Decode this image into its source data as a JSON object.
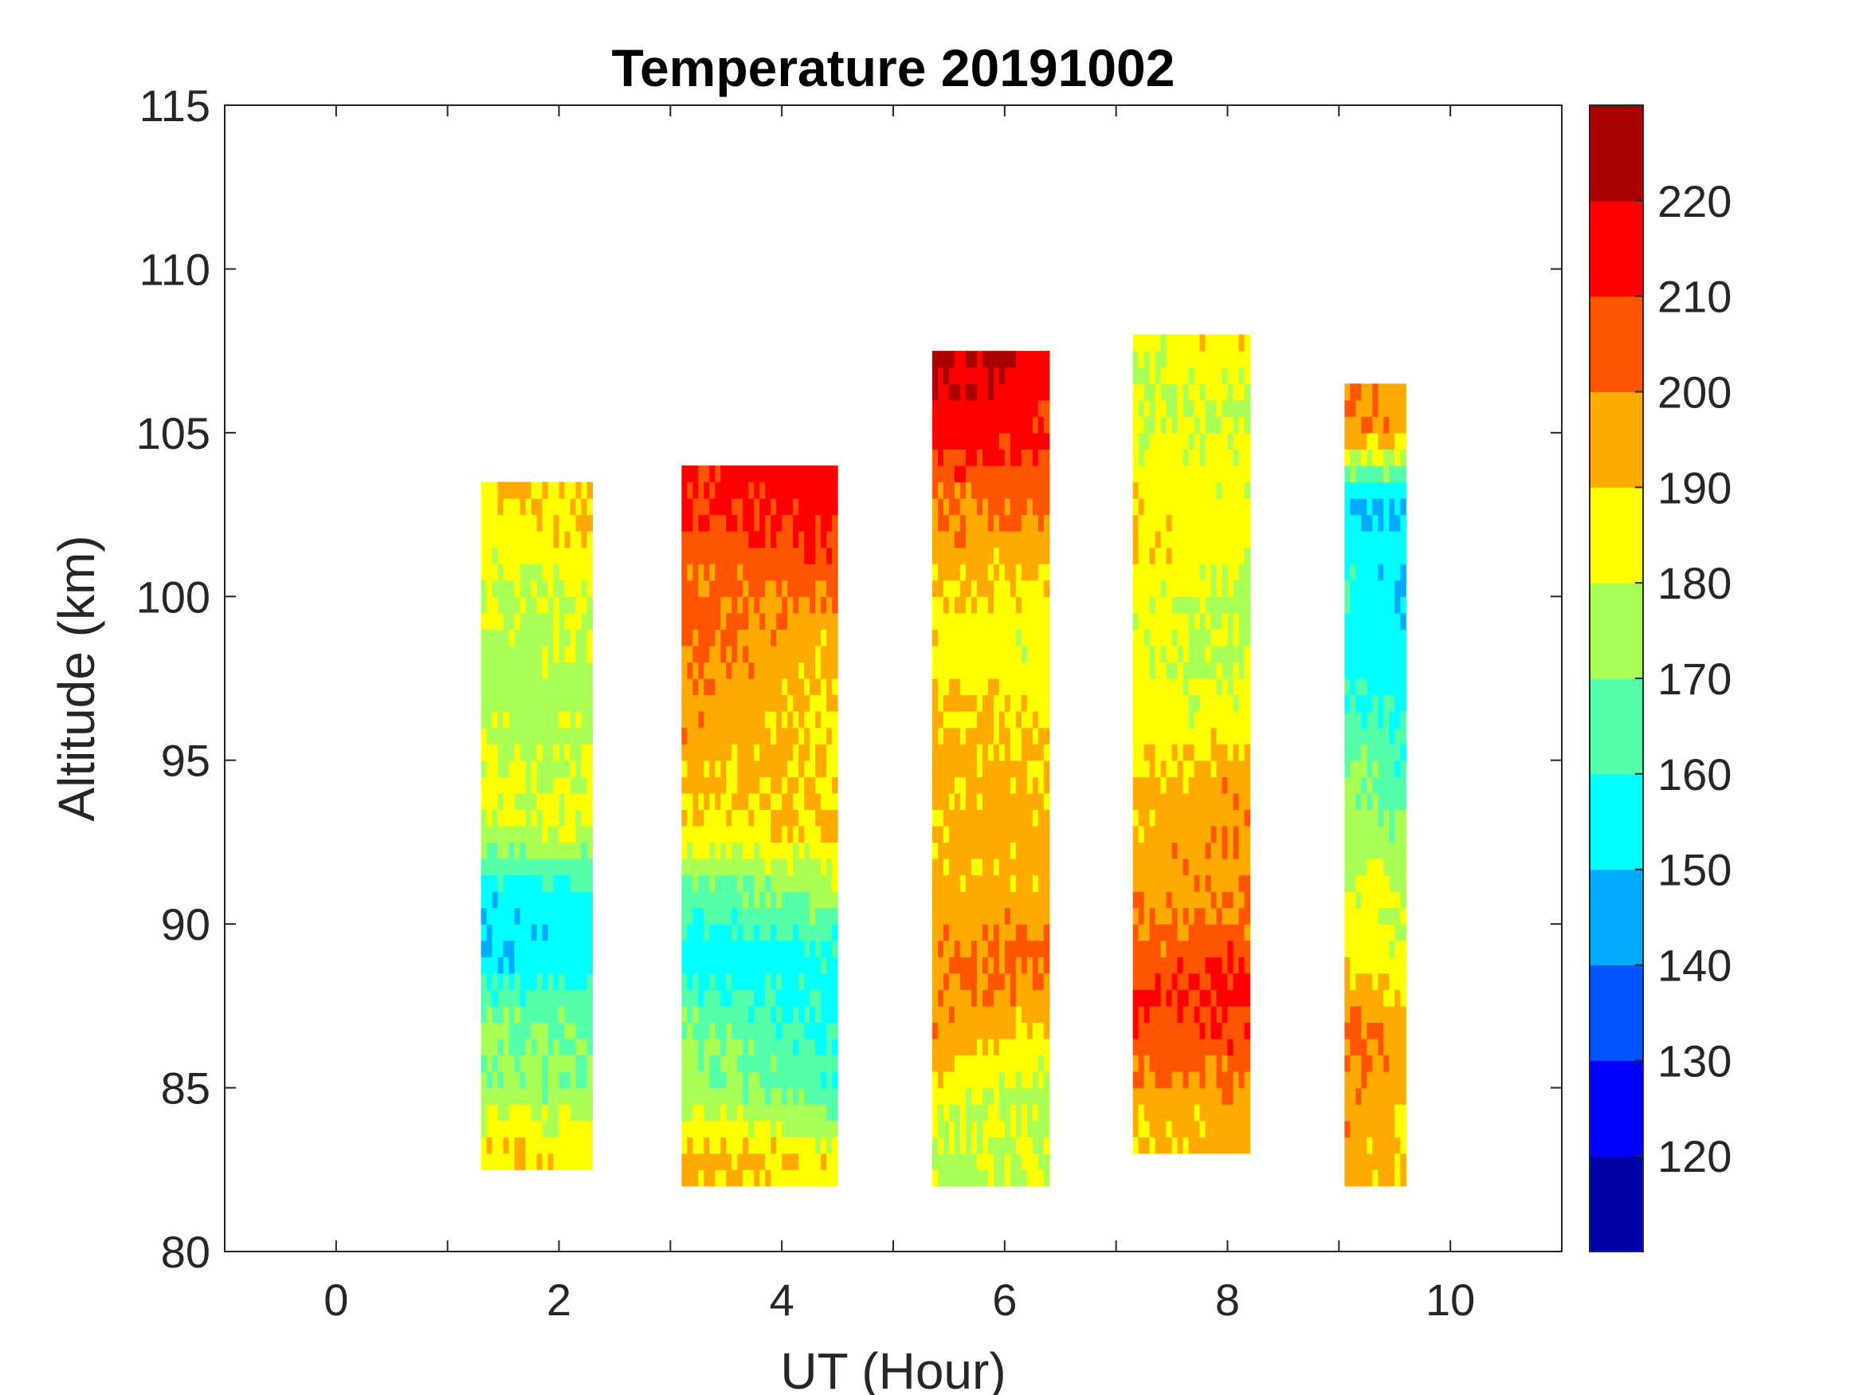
{
  "chart_data": {
    "type": "heatmap",
    "title": "Temperature 20191002",
    "xlabel": "UT (Hour)",
    "ylabel": "Altitude (km)",
    "xlim": [
      -1,
      11
    ],
    "ylim": [
      80,
      115
    ],
    "xticks": [
      0,
      2,
      4,
      6,
      8,
      10
    ],
    "yticks": [
      80,
      85,
      90,
      95,
      100,
      105,
      110,
      115
    ],
    "colorbar": {
      "range": [
        110,
        230
      ],
      "ticks": [
        120,
        130,
        140,
        150,
        160,
        170,
        180,
        190,
        200,
        210,
        220
      ],
      "colors": [
        "#0000aa",
        "#0000ff",
        "#0055ff",
        "#00aaff",
        "#00ffff",
        "#55ffaa",
        "#aaff55",
        "#ffff00",
        "#ffaa00",
        "#ff5500",
        "#ff0000",
        "#aa0000"
      ]
    },
    "blocks": [
      {
        "ut": [
          1.3,
          2.3
        ],
        "alt": [
          82.5,
          103.5
        ],
        "profile_alt": [
          83,
          85,
          87,
          89,
          91,
          93,
          95,
          97,
          99,
          101,
          103
        ],
        "left": [
          190,
          172,
          172,
          150,
          152,
          182,
          182,
          176,
          176,
          182,
          190
        ],
        "right": [
          185,
          172,
          168,
          155,
          158,
          182,
          178,
          175,
          180,
          185,
          192
        ]
      },
      {
        "ut": [
          3.1,
          4.5
        ],
        "alt": [
          82,
          104
        ],
        "profile_alt": [
          83,
          85,
          87,
          89,
          91,
          93,
          95,
          97,
          99,
          101,
          103
        ],
        "left": [
          195,
          176,
          172,
          152,
          165,
          185,
          195,
          198,
          205,
          202,
          212
        ],
        "right": [
          185,
          162,
          155,
          158,
          175,
          192,
          188,
          190,
          192,
          208,
          215
        ]
      },
      {
        "ut": [
          5.35,
          6.4
        ],
        "alt": [
          82,
          107.5
        ],
        "profile_alt": [
          83,
          85,
          87,
          89,
          91,
          93,
          95,
          97,
          99,
          101,
          103,
          105,
          107
        ],
        "left": [
          178,
          185,
          200,
          198,
          195,
          192,
          195,
          192,
          185,
          195,
          200,
          215,
          222
        ],
        "right": [
          180,
          175,
          190,
          205,
          192,
          195,
          190,
          185,
          182,
          190,
          205,
          212,
          215
        ]
      },
      {
        "ut": [
          7.15,
          8.2
        ],
        "alt": [
          83,
          108
        ],
        "profile_alt": [
          84,
          86,
          88,
          90,
          92,
          94,
          96,
          98,
          100,
          102,
          104,
          106,
          108
        ],
        "left": [
          190,
          205,
          210,
          198,
          195,
          192,
          185,
          182,
          185,
          190,
          185,
          178,
          180
        ],
        "right": [
          195,
          205,
          215,
          202,
          198,
          200,
          185,
          178,
          176,
          185,
          182,
          178,
          195
        ]
      },
      {
        "ut": [
          9.05,
          9.6
        ],
        "alt": [
          82,
          106.5
        ],
        "profile_alt": [
          83,
          85,
          87,
          89,
          91,
          93,
          95,
          97,
          99,
          101,
          103,
          105
        ],
        "left": [
          195,
          198,
          202,
          188,
          182,
          175,
          172,
          158,
          155,
          158,
          148,
          200
        ],
        "right": [
          190,
          195,
          196,
          180,
          180,
          170,
          160,
          155,
          152,
          150,
          150,
          195
        ]
      }
    ]
  }
}
